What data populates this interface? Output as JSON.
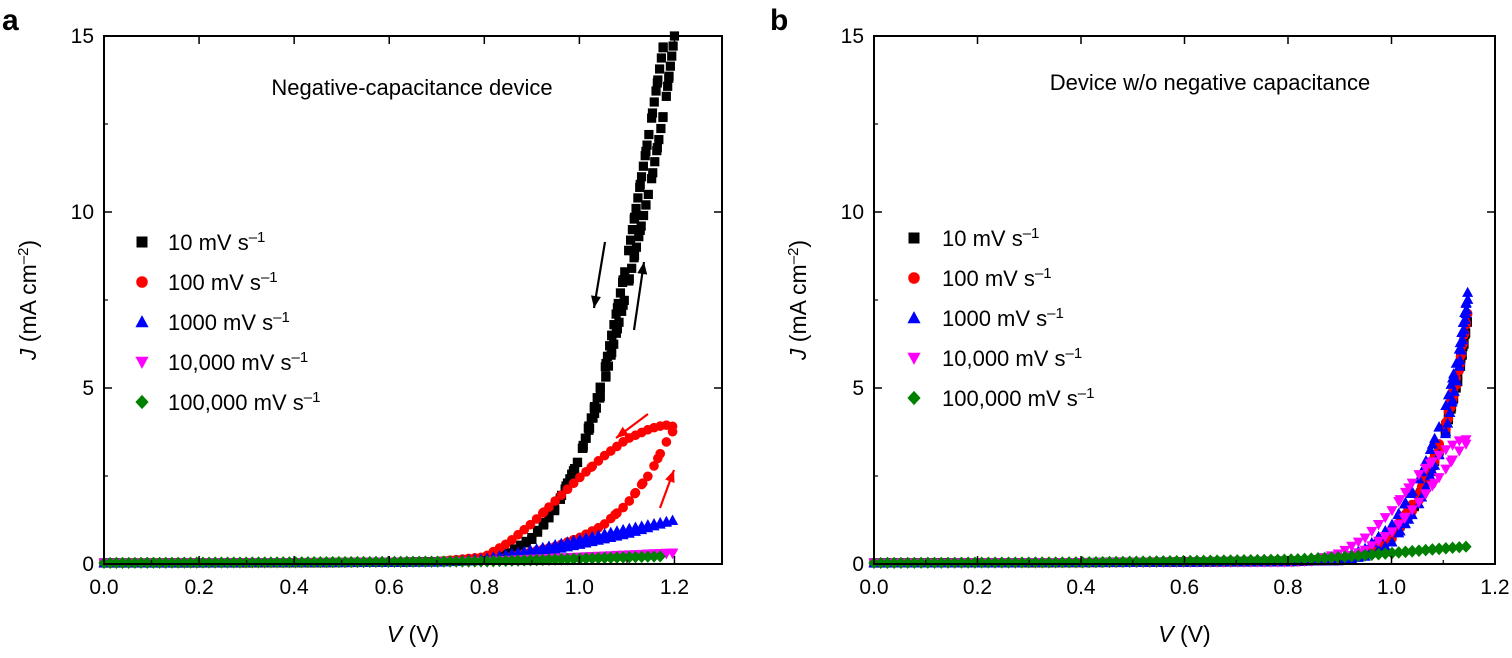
{
  "chart_data": [
    {
      "type": "scatter",
      "panel": "a",
      "annotation": "Negative-capacitance device",
      "xlabel": {
        "var": "V",
        "unit": "(V)"
      },
      "ylabel": {
        "var": "J",
        "unit_main": "(mA cm",
        "unit_sup": "–2",
        "unit_end": ")"
      },
      "xlim": [
        0,
        1.3
      ],
      "ylim": [
        0,
        15
      ],
      "xticks": [
        0.0,
        0.2,
        0.4,
        0.6,
        0.8,
        1.0,
        1.2
      ],
      "xtick_labels": [
        "0.0",
        "0.2",
        "0.4",
        "0.6",
        "0.8",
        "1.0",
        "1.2"
      ],
      "yticks": [
        0,
        5,
        10,
        15
      ],
      "ytick_labels": [
        "0",
        "5",
        "10",
        "15"
      ],
      "legend_position": "middle-left",
      "series": [
        {
          "name": "10 mV s",
          "sup": "–1",
          "color": "#000000",
          "marker": "square",
          "forward": [
            [
              0,
              0.03
            ],
            [
              0.2,
              0.03
            ],
            [
              0.4,
              0.04
            ],
            [
              0.6,
              0.05
            ],
            [
              0.7,
              0.07
            ],
            [
              0.8,
              0.14
            ],
            [
              0.85,
              0.3
            ],
            [
              0.9,
              0.75
            ],
            [
              0.95,
              1.6
            ],
            [
              1.0,
              3.0
            ],
            [
              1.05,
              5.3
            ],
            [
              1.1,
              8.6
            ],
            [
              1.15,
              12.5
            ],
            [
              1.18,
              15.0
            ]
          ],
          "reverse": [
            [
              1.2,
              15.0
            ],
            [
              1.18,
              13.0
            ],
            [
              1.15,
              10.8
            ],
            [
              1.1,
              7.8
            ],
            [
              1.05,
              5.0
            ],
            [
              1.0,
              3.0
            ],
            [
              0.95,
              1.55
            ],
            [
              0.9,
              0.7
            ],
            [
              0.85,
              0.28
            ],
            [
              0.8,
              0.12
            ],
            [
              0.7,
              0.06
            ],
            [
              0.5,
              0.04
            ],
            [
              0.3,
              0.03
            ],
            [
              0,
              0.03
            ]
          ]
        },
        {
          "name": "100 mV s",
          "sup": "–1",
          "color": "#ff0000",
          "marker": "circle",
          "forward": [
            [
              0,
              0.03
            ],
            [
              0.4,
              0.04
            ],
            [
              0.7,
              0.06
            ],
            [
              0.8,
              0.1
            ],
            [
              0.85,
              0.2
            ],
            [
              0.9,
              0.35
            ],
            [
              0.95,
              0.5
            ],
            [
              1.0,
              0.75
            ],
            [
              1.05,
              1.1
            ],
            [
              1.1,
              1.7
            ],
            [
              1.15,
              2.6
            ],
            [
              1.18,
              3.4
            ],
            [
              1.2,
              3.85
            ]
          ],
          "reverse": [
            [
              1.2,
              3.9
            ],
            [
              1.18,
              3.95
            ],
            [
              1.15,
              3.85
            ],
            [
              1.1,
              3.55
            ],
            [
              1.05,
              3.05
            ],
            [
              1.0,
              2.45
            ],
            [
              0.95,
              1.8
            ],
            [
              0.9,
              1.15
            ],
            [
              0.85,
              0.6
            ],
            [
              0.8,
              0.2
            ],
            [
              0.7,
              0.07
            ],
            [
              0.4,
              0.04
            ],
            [
              0,
              0.03
            ]
          ]
        },
        {
          "name": "1000 mV s",
          "sup": "–1",
          "color": "#0000ff",
          "marker": "triangle-up",
          "forward": [
            [
              0,
              0.03
            ],
            [
              0.4,
              0.04
            ],
            [
              0.7,
              0.05
            ],
            [
              0.8,
              0.1
            ],
            [
              0.9,
              0.28
            ],
            [
              1.0,
              0.55
            ],
            [
              1.1,
              0.85
            ],
            [
              1.15,
              1.05
            ],
            [
              1.2,
              1.25
            ]
          ],
          "reverse": [
            [
              1.2,
              1.25
            ],
            [
              1.1,
              1.0
            ],
            [
              1.0,
              0.7
            ],
            [
              0.9,
              0.4
            ],
            [
              0.8,
              0.15
            ],
            [
              0.7,
              0.06
            ],
            [
              0.4,
              0.04
            ],
            [
              0,
              0.03
            ]
          ]
        },
        {
          "name": "10,000 mV s",
          "sup": "–1",
          "color": "#ff00ff",
          "marker": "triangle-down",
          "forward": [
            [
              0,
              0.03
            ],
            [
              0.4,
              0.04
            ],
            [
              0.8,
              0.06
            ],
            [
              0.9,
              0.12
            ],
            [
              1.0,
              0.18
            ],
            [
              1.1,
              0.24
            ],
            [
              1.2,
              0.3
            ]
          ],
          "reverse": [
            [
              1.2,
              0.32
            ],
            [
              1.1,
              0.26
            ],
            [
              1.0,
              0.2
            ],
            [
              0.9,
              0.14
            ],
            [
              0.8,
              0.07
            ],
            [
              0.4,
              0.04
            ],
            [
              0,
              0.03
            ]
          ]
        },
        {
          "name": "100,000 mV s",
          "sup": "–1",
          "color": "#008000",
          "marker": "diamond",
          "forward": [
            [
              0,
              0.03
            ],
            [
              0.4,
              0.05
            ],
            [
              0.8,
              0.07
            ],
            [
              0.9,
              0.1
            ],
            [
              1.0,
              0.14
            ],
            [
              1.1,
              0.18
            ],
            [
              1.18,
              0.22
            ]
          ],
          "reverse": [
            [
              1.18,
              0.22
            ],
            [
              1.1,
              0.2
            ],
            [
              1.0,
              0.16
            ],
            [
              0.9,
              0.12
            ],
            [
              0.8,
              0.08
            ],
            [
              0.4,
              0.05
            ],
            [
              0,
              0.03
            ]
          ]
        }
      ]
    },
    {
      "type": "scatter",
      "panel": "b",
      "annotation": "Device w/o negative capacitance",
      "xlabel": {
        "var": "V",
        "unit": "(V)"
      },
      "ylabel": {
        "var": "J",
        "unit_main": "(mA cm",
        "unit_sup": "–2",
        "unit_end": ")"
      },
      "xlim": [
        0,
        1.2
      ],
      "ylim": [
        0,
        15
      ],
      "xticks": [
        0.0,
        0.2,
        0.4,
        0.6,
        0.8,
        1.0,
        1.2
      ],
      "xtick_labels": [
        "0.0",
        "0.2",
        "0.4",
        "0.6",
        "0.8",
        "1.0",
        "1.2"
      ],
      "yticks": [
        0,
        5,
        10,
        15
      ],
      "ytick_labels": [
        "0",
        "5",
        "10",
        "15"
      ],
      "legend_position": "middle-left",
      "series": [
        {
          "name": "10 mV s",
          "sup": "–1",
          "color": "#000000",
          "marker": "square",
          "forward": [
            [
              0,
              0.03
            ],
            [
              0.4,
              0.04
            ],
            [
              0.8,
              0.06
            ],
            [
              0.9,
              0.12
            ],
            [
              0.95,
              0.3
            ],
            [
              1.0,
              0.8
            ],
            [
              1.05,
              1.8
            ],
            [
              1.1,
              3.6
            ],
            [
              1.13,
              5.5
            ],
            [
              1.15,
              7.2
            ]
          ],
          "reverse": [
            [
              1.15,
              7.2
            ],
            [
              1.13,
              5.3
            ],
            [
              1.1,
              3.5
            ],
            [
              1.05,
              1.75
            ],
            [
              1.0,
              0.75
            ],
            [
              0.95,
              0.28
            ],
            [
              0.9,
              0.1
            ],
            [
              0.4,
              0.04
            ],
            [
              0,
              0.03
            ]
          ]
        },
        {
          "name": "100 mV s",
          "sup": "–1",
          "color": "#ff0000",
          "marker": "circle",
          "forward": [
            [
              0,
              0.03
            ],
            [
              0.4,
              0.04
            ],
            [
              0.8,
              0.06
            ],
            [
              0.9,
              0.12
            ],
            [
              0.95,
              0.32
            ],
            [
              1.0,
              0.85
            ],
            [
              1.05,
              1.9
            ],
            [
              1.1,
              3.7
            ],
            [
              1.13,
              5.6
            ],
            [
              1.15,
              7.4
            ]
          ],
          "reverse": [
            [
              1.15,
              7.4
            ],
            [
              1.13,
              5.4
            ],
            [
              1.1,
              3.5
            ],
            [
              1.05,
              1.7
            ],
            [
              1.0,
              0.7
            ],
            [
              0.95,
              0.25
            ],
            [
              0.9,
              0.1
            ],
            [
              0.4,
              0.04
            ],
            [
              0,
              0.03
            ]
          ]
        },
        {
          "name": "1000 mV s",
          "sup": "–1",
          "color": "#0000ff",
          "marker": "triangle-up",
          "forward": [
            [
              0,
              0.03
            ],
            [
              0.4,
              0.04
            ],
            [
              0.8,
              0.06
            ],
            [
              0.9,
              0.15
            ],
            [
              0.95,
              0.45
            ],
            [
              1.0,
              1.1
            ],
            [
              1.05,
              2.3
            ],
            [
              1.1,
              4.2
            ],
            [
              1.13,
              6.0
            ],
            [
              1.15,
              8.0
            ]
          ],
          "reverse": [
            [
              1.15,
              7.8
            ],
            [
              1.13,
              5.5
            ],
            [
              1.1,
              3.4
            ],
            [
              1.05,
              1.6
            ],
            [
              1.0,
              0.6
            ],
            [
              0.95,
              0.22
            ],
            [
              0.9,
              0.09
            ],
            [
              0.4,
              0.04
            ],
            [
              0,
              0.03
            ]
          ]
        },
        {
          "name": "10,000 mV s",
          "sup": "–1",
          "color": "#ff00ff",
          "marker": "triangle-down",
          "forward": [
            [
              0,
              0.03
            ],
            [
              0.4,
              0.04
            ],
            [
              0.8,
              0.06
            ],
            [
              0.9,
              0.12
            ],
            [
              0.95,
              0.4
            ],
            [
              1.0,
              0.9
            ],
            [
              1.05,
              1.7
            ],
            [
              1.1,
              2.6
            ],
            [
              1.13,
              3.2
            ],
            [
              1.15,
              3.5
            ]
          ],
          "reverse": [
            [
              1.15,
              3.55
            ],
            [
              1.13,
              3.5
            ],
            [
              1.1,
              3.2
            ],
            [
              1.05,
              2.5
            ],
            [
              1.0,
              1.5
            ],
            [
              0.95,
              0.75
            ],
            [
              0.9,
              0.3
            ],
            [
              0.85,
              0.1
            ],
            [
              0.4,
              0.04
            ],
            [
              0,
              0.03
            ]
          ]
        },
        {
          "name": "100,000 mV s",
          "sup": "–1",
          "color": "#008000",
          "marker": "diamond",
          "forward": [
            [
              0,
              0.03
            ],
            [
              0.4,
              0.05
            ],
            [
              0.8,
              0.12
            ],
            [
              0.9,
              0.18
            ],
            [
              1.0,
              0.3
            ],
            [
              1.1,
              0.43
            ],
            [
              1.15,
              0.5
            ]
          ],
          "reverse": [
            [
              1.15,
              0.5
            ],
            [
              1.1,
              0.45
            ],
            [
              1.0,
              0.32
            ],
            [
              0.9,
              0.2
            ],
            [
              0.8,
              0.13
            ],
            [
              0.4,
              0.05
            ],
            [
              0,
              0.03
            ]
          ]
        }
      ]
    }
  ]
}
